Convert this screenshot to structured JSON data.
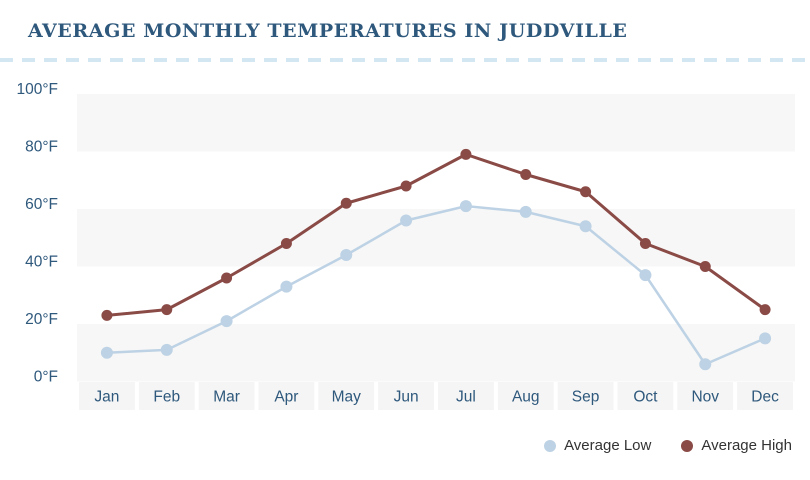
{
  "page": {
    "background": "#FFFFFF"
  },
  "colors": {
    "title_text": "#2E587C",
    "axis_text": "#2E587C",
    "legend_text": "#333333",
    "band_fill": "#F7F7F7",
    "month_box_fill": "#F5F5F5",
    "divider_dash": "#D3E7F3",
    "average_low": "#BDD2E4",
    "average_high": "#8A4A46",
    "background": "#FFFFFF"
  },
  "chart_data": {
    "type": "line",
    "title": "AVERAGE MONTHLY TEMPERATURES IN JUDDVILLE",
    "categories": [
      "Jan",
      "Feb",
      "Mar",
      "Apr",
      "May",
      "Jun",
      "Jul",
      "Aug",
      "Sep",
      "Oct",
      "Nov",
      "Dec"
    ],
    "series": [
      {
        "name": "Average Low",
        "color": "#BDD2E4",
        "marker": "circle",
        "values": [
          10,
          11,
          21,
          33,
          44,
          56,
          61,
          59,
          54,
          37,
          6,
          15
        ]
      },
      {
        "name": "Average High",
        "color": "#8A4A46",
        "marker": "circle",
        "values": [
          23,
          25,
          36,
          48,
          62,
          68,
          79,
          72,
          66,
          48,
          40,
          25
        ]
      }
    ],
    "xlabel": "",
    "ylabel": "",
    "unit": "°F",
    "ylim": [
      0,
      100
    ],
    "y_ticks": [
      0,
      20,
      40,
      60,
      80,
      100
    ],
    "y_tick_labels": [
      "0°F",
      "20°F",
      "40°F",
      "60°F",
      "80°F",
      "100°F"
    ],
    "grid_bands": [
      [
        80,
        100
      ],
      [
        40,
        60
      ],
      [
        0,
        20
      ]
    ],
    "gridlines": "none (alternating shaded horizontal bands)",
    "legend_position": "bottom-right"
  }
}
